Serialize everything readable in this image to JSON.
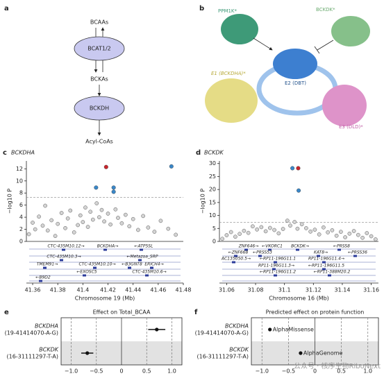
{
  "panels": {
    "a": {
      "label": "a",
      "nodes": [
        "BCAAs",
        "BCAT1/2",
        "BCKAs",
        "BCKDH",
        "Acyl-CoAs"
      ]
    },
    "b": {
      "label": "b",
      "proteins": [
        "PPM1K*",
        "BCKDK*",
        "E1 (BCKDHA)*",
        "E2 (DBT)",
        "E3 (DLD)*"
      ]
    }
  },
  "chart_data": [
    {
      "type": "manhattan",
      "label": "c",
      "title": "BCKDHA",
      "ylabel": "−log10 P",
      "xlabel": "Chromosome 19 (Mb)",
      "xlim": [
        41.355,
        41.48
      ],
      "xticks": [
        41.36,
        41.38,
        41.4,
        41.42,
        41.44,
        41.46,
        41.48
      ],
      "ylim": [
        0,
        13.3
      ],
      "yticks": [
        0,
        2,
        4,
        6,
        8,
        10,
        12
      ],
      "threshold": 7.3,
      "points": {
        "color": "#d4d4d4",
        "x": [
          41.357,
          41.36,
          41.362,
          41.365,
          41.368,
          41.37,
          41.372,
          41.375,
          41.378,
          41.38,
          41.383,
          41.386,
          41.388,
          41.39,
          41.393,
          41.396,
          41.398,
          41.4,
          41.402,
          41.404,
          41.406,
          41.408,
          41.411,
          41.413,
          41.415,
          41.417,
          41.42,
          41.422,
          41.426,
          41.428,
          41.431,
          41.434,
          41.437,
          41.44,
          41.444,
          41.448,
          41.452,
          41.457,
          41.462,
          41.468,
          41.474
        ],
        "y": [
          1.2,
          3.1,
          2.0,
          4.1,
          2.6,
          5.9,
          1.8,
          3.5,
          0.9,
          2.9,
          4.7,
          2.2,
          3.8,
          5.1,
          1.5,
          2.7,
          4.3,
          3.2,
          5.6,
          2.4,
          4.9,
          3.6,
          6.3,
          4.0,
          5.2,
          3.3,
          4.6,
          2.8,
          5.3,
          3.9,
          3.0,
          4.4,
          2.5,
          3.7,
          1.9,
          4.2,
          2.3,
          1.6,
          3.4,
          2.1,
          1.1
        ]
      },
      "highlighted": {
        "x": [
          41.4185,
          41.4705,
          41.4105,
          41.4245,
          41.4245
        ],
        "y": [
          12.3,
          12.4,
          8.9,
          8.9,
          8.2
        ],
        "colors": [
          "#c8262d",
          "#3a87c8",
          "#3a87c8",
          "#3a87c8",
          "#3a87c8"
        ]
      },
      "genes": [
        "CTC-435M10.12→",
        "BCKDHA→",
        "←ATP5SL",
        "CTC-435M10.3→",
        "←Metazoa_SRP",
        "TMEM91→",
        "CTC-435M10.10→",
        "←B3GNT8",
        "ERICH4→",
        "←EXOSC5",
        "CTC-435M10.6→",
        "←B9D2"
      ]
    },
    {
      "type": "manhattan",
      "label": "d",
      "title": "BCKDK",
      "ylabel": "−log10 P",
      "xlabel": "Chromosome 16 (Mb)",
      "xlim": [
        31.055,
        31.165
      ],
      "xticks": [
        31.06,
        31.08,
        31.1,
        31.12,
        31.14,
        31.16
      ],
      "ylim": [
        0,
        31
      ],
      "yticks": [
        0,
        5,
        10,
        15,
        20,
        25,
        30
      ],
      "threshold": 7.3,
      "points": {
        "color": "#d4d4d4",
        "x": [
          31.057,
          31.06,
          31.063,
          31.066,
          31.069,
          31.072,
          31.075,
          31.078,
          31.081,
          31.084,
          31.087,
          31.09,
          31.093,
          31.096,
          31.099,
          31.102,
          31.104,
          31.107,
          31.109,
          31.112,
          31.115,
          31.118,
          31.121,
          31.124,
          31.127,
          31.13,
          31.133,
          31.136,
          31.139,
          31.142,
          31.145,
          31.148,
          31.151,
          31.154,
          31.157,
          31.16,
          31.163
        ],
        "y": [
          1.0,
          2.4,
          3.6,
          1.8,
          2.9,
          4.1,
          3.3,
          5.8,
          4.6,
          5.5,
          3.9,
          5.2,
          4.4,
          3.1,
          4.8,
          8.0,
          6.1,
          7.5,
          4.9,
          6.6,
          5.1,
          3.8,
          4.5,
          2.7,
          5.4,
          3.5,
          4.3,
          2.2,
          3.7,
          1.6,
          3.0,
          4.0,
          2.5,
          1.4,
          3.2,
          2.0,
          0.8
        ]
      },
      "highlighted": {
        "x": [
          31.1055,
          31.1095,
          31.1098
        ],
        "y": [
          28.2,
          28.2,
          19.6
        ],
        "colors": [
          "#3a87c8",
          "#c8262d",
          "#3a87c8"
        ]
      },
      "genes": [
        "ZNF646→",
        "←VKORC1",
        "BCKDK→",
        "←PRSS8",
        "←ZNF668",
        "←PRSS53",
        "KAT8→",
        "←PRSS36",
        "AC135050.5→",
        "←RP11-196G11.1",
        "RP11-196G11.4→",
        "RP11-196G11.3→",
        "←RP11-196G11.5",
        "←RP11-196G11.2",
        "←RP11-388M20.2"
      ]
    },
    {
      "type": "forest",
      "label": "e",
      "title": "Effect on Total_BCAA",
      "categories": [
        "BCKDHA",
        "BCKDK"
      ],
      "variants": [
        "(19-41414070-A-G)",
        "(16-31111297-T-A)"
      ],
      "values": [
        0.7,
        -0.68
      ],
      "errors": [
        0.17,
        0.12
      ],
      "xlim": [
        -1.2,
        1.2
      ],
      "xticks": [
        {
          "value": -1,
          "label": "−1.0"
        },
        {
          "value": -0.5,
          "label": "−0.5"
        },
        0,
        0.5,
        {
          "value": 1,
          "label": "1.0"
        }
      ]
    },
    {
      "type": "forest",
      "label": "f",
      "title": "Predicted effect on protein function",
      "categories": [
        "BCKDHA",
        "BCKDK"
      ],
      "variants": [
        "(19-41414070-A-G)",
        "(16-31111297-T-A)"
      ],
      "values": [
        -0.85,
        -0.27
      ],
      "point_labels": [
        "AlphaMissense",
        "AlphaGenome"
      ],
      "xlim": [
        -1.2,
        1.2
      ],
      "xticks": [
        {
          "value": -1,
          "label": "−1.0"
        },
        {
          "value": -0.5,
          "label": "−0.5"
        },
        0,
        0.5,
        {
          "value": 1,
          "label": "1.0"
        }
      ]
    }
  ],
  "watermark": "公众号 · 核序生物RiboNext"
}
